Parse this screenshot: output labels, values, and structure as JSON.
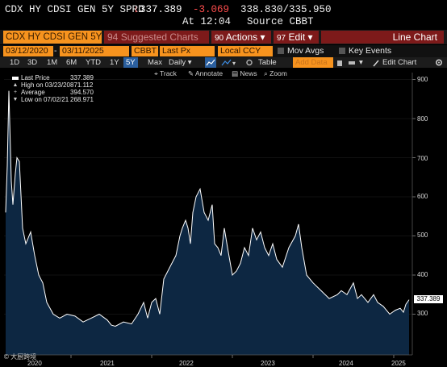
{
  "ticker": {
    "name": "CDX HY CDSI GEN 5Y SPRD",
    "arrow": "↓",
    "last": "337.389",
    "change": "-3.069",
    "range": "338.830/335.950",
    "time": "At 12:04",
    "source": "Source CBBT"
  },
  "toolbar": {
    "security": "CDX HY CDSI GEN 5Y",
    "suggested": "Suggested Charts",
    "suggested_prefix": "94",
    "actions": "Actions",
    "actions_prefix": "90",
    "edit": "Edit",
    "edit_prefix": "97",
    "view": "Line Chart"
  },
  "params": {
    "start_date": "03/12/2020",
    "end_date": "03/11/2025",
    "pricing_source": "CBBT",
    "field": "Last Px",
    "currency": "Local CCY",
    "mov_avgs": "Mov Avgs",
    "key_events": "Key Events"
  },
  "periods": {
    "items": [
      "1D",
      "3D",
      "1M",
      "6M",
      "YTD",
      "1Y",
      "5Y",
      "Max"
    ],
    "selected": "5Y",
    "frequency": "Daily",
    "table": "Table",
    "add_data": "Add Data",
    "edit_chart": "Edit Chart"
  },
  "chart_tools": {
    "track": "Track",
    "annotate": "Annotate",
    "news": "News",
    "zoom": "Zoom"
  },
  "legend": {
    "rows": [
      {
        "label": "Last Price",
        "value": "337.389"
      },
      {
        "label": "High on 03/23/20",
        "value": "871.112"
      },
      {
        "label": "Average",
        "value": "394.570"
      },
      {
        "label": "Low on 07/02/21",
        "value": "268.971"
      }
    ]
  },
  "watermark": "大厨跨境",
  "colors": {
    "line": "#ffffff",
    "area": "#0d2742",
    "accent": "#f7931e",
    "button": "#7d1a1a"
  },
  "chart_data": {
    "type": "area",
    "title": "",
    "xlabel": "",
    "ylabel": "",
    "x_ticks": [
      "2020",
      "2021",
      "2022",
      "2023",
      "2024",
      "2025"
    ],
    "y_ticks": [
      300,
      400,
      500,
      600,
      700,
      800,
      900
    ],
    "ylim": [
      210,
      920
    ],
    "last_value_label": "337.389",
    "series": [
      {
        "name": "Last Price",
        "x": [
          2020.19,
          2020.21,
          2020.23,
          2020.26,
          2020.28,
          2020.31,
          2020.33,
          2020.36,
          2020.4,
          2020.44,
          2020.5,
          2020.55,
          2020.6,
          2020.65,
          2020.7,
          2020.78,
          2020.86,
          2020.95,
          2021.05,
          2021.15,
          2021.25,
          2021.35,
          2021.45,
          2021.5,
          2021.55,
          2021.65,
          2021.75,
          2021.83,
          2021.9,
          2021.95,
          2022.0,
          2022.05,
          2022.1,
          2022.15,
          2022.2,
          2022.25,
          2022.3,
          2022.35,
          2022.38,
          2022.42,
          2022.45,
          2022.48,
          2022.51,
          2022.55,
          2022.6,
          2022.65,
          2022.7,
          2022.75,
          2022.78,
          2022.82,
          2022.86,
          2022.9,
          2022.94,
          2023.0,
          2023.05,
          2023.1,
          2023.15,
          2023.2,
          2023.25,
          2023.3,
          2023.35,
          2023.4,
          2023.45,
          2023.5,
          2023.55,
          2023.62,
          2023.7,
          2023.78,
          2023.82,
          2023.86,
          2023.92,
          2024.0,
          2024.1,
          2024.2,
          2024.3,
          2024.35,
          2024.42,
          2024.5,
          2024.55,
          2024.6,
          2024.68,
          2024.75,
          2024.8,
          2024.87,
          2024.95,
          2025.02,
          2025.08,
          2025.12,
          2025.15,
          2025.19
        ],
        "values": [
          560,
          680,
          871,
          640,
          580,
          660,
          700,
          690,
          520,
          480,
          510,
          450,
          400,
          380,
          330,
          300,
          290,
          300,
          295,
          280,
          290,
          300,
          285,
          272,
          269,
          280,
          275,
          300,
          330,
          290,
          330,
          340,
          300,
          390,
          410,
          430,
          450,
          500,
          520,
          540,
          520,
          480,
          560,
          600,
          620,
          560,
          540,
          580,
          480,
          470,
          450,
          520,
          470,
          400,
          410,
          430,
          470,
          450,
          520,
          490,
          510,
          470,
          450,
          480,
          440,
          420,
          470,
          500,
          530,
          470,
          400,
          380,
          360,
          340,
          350,
          360,
          350,
          380,
          340,
          350,
          330,
          350,
          330,
          320,
          300,
          310,
          315,
          305,
          325,
          337
        ]
      }
    ]
  }
}
